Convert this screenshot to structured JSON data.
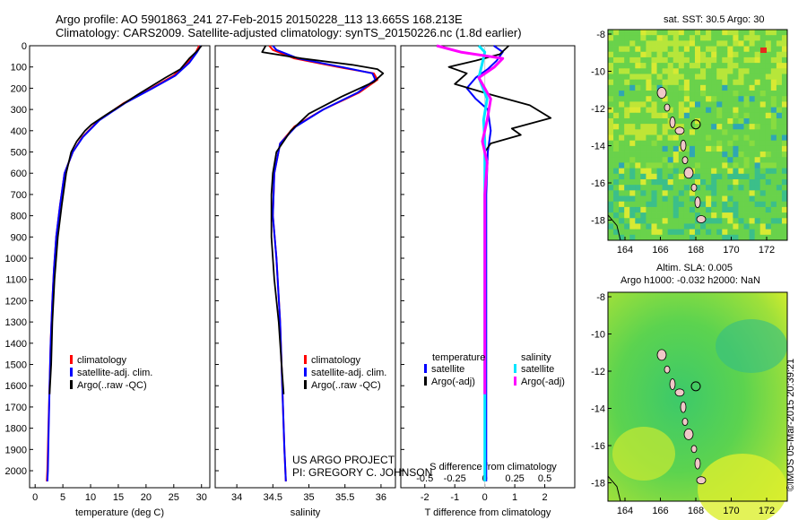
{
  "header": {
    "line1": "Argo profile: AO 5901863_241 27-Feb-2015 20150228_113 13.665S 168.213E",
    "line2": "Climatology: CARS2009. Satellite-adjusted climatology: synTS_20150226.nc (1.8d earlier)"
  },
  "maps": {
    "top_title": "sat. SST: 30.5 Argo: 30",
    "bottom_title_1": "Altim. SLA: 0.005",
    "bottom_title_2": "Argo h1000: -0.032 h2000: NaN",
    "xticks": [
      "164",
      "166",
      "168",
      "170",
      "172"
    ],
    "yticks": [
      "-8",
      "-10",
      "-12",
      "-14",
      "-16",
      "-18"
    ]
  },
  "project": {
    "line1": "US ARGO PROJECT",
    "line2": "PI: GREGORY C. JOHNSON"
  },
  "stamp": "©IMOS 05-Mar-2015 20:39:21",
  "colors": {
    "climatology": "#ff0000",
    "satellite": "#0000ff",
    "argo": "#000000",
    "satellite_s": "#00e5ff",
    "argo_s": "#ff00ff"
  },
  "chart_data": [
    {
      "type": "line",
      "xlabel": "temperature (deg C)",
      "ylabel": "",
      "xlim": [
        -1,
        31.5
      ],
      "ylim": [
        2080,
        0
      ],
      "xticks": [
        "0",
        "5",
        "10",
        "15",
        "20",
        "25",
        "30"
      ],
      "yticks": [
        "0",
        "100",
        "200",
        "300",
        "400",
        "500",
        "600",
        "700",
        "800",
        "900",
        "1000",
        "1100",
        "1200",
        "1300",
        "1400",
        "1500",
        "1600",
        "1700",
        "1800",
        "1900",
        "2000"
      ],
      "legend": [
        "climatology",
        "satellite-adj. clim.",
        "Argo(..raw -QC)"
      ],
      "series": [
        {
          "name": "climatology",
          "color": "red",
          "x": [
            29.6,
            29.0,
            27.5,
            25.0,
            21.0,
            16.0,
            11.5,
            8.5,
            6.8,
            5.3,
            4.5,
            3.8,
            3.4,
            3.1,
            2.8,
            2.6,
            2.4,
            2.2,
            2.1
          ],
          "y": [
            0,
            30,
            80,
            140,
            200,
            270,
            350,
            430,
            500,
            600,
            750,
            900,
            1050,
            1200,
            1400,
            1600,
            1800,
            2000,
            2050
          ]
        },
        {
          "name": "satellite-adj. clim.",
          "color": "blue",
          "x": [
            29.9,
            29.2,
            27.8,
            25.3,
            21.2,
            16.2,
            11.6,
            8.6,
            6.8,
            5.3,
            4.5,
            3.8,
            3.4,
            3.1,
            2.8,
            2.6,
            2.45,
            2.3,
            2.2
          ],
          "y": [
            0,
            30,
            80,
            140,
            200,
            270,
            350,
            430,
            500,
            600,
            750,
            900,
            1050,
            1200,
            1400,
            1600,
            1800,
            2000,
            2050
          ]
        },
        {
          "name": "Argo(..raw -QC)",
          "color": "black",
          "x": [
            30.0,
            29.2,
            27.8,
            26.2,
            23.5,
            21.0,
            18.5,
            15.5,
            12.5,
            10.2,
            9.0,
            7.5,
            6.5,
            5.6,
            4.8,
            4.1,
            3.5,
            3.1,
            2.9,
            2.6
          ],
          "y": [
            0,
            25,
            60,
            110,
            150,
            190,
            230,
            280,
            330,
            370,
            400,
            450,
            500,
            600,
            750,
            900,
            1100,
            1300,
            1500,
            1640
          ]
        }
      ]
    },
    {
      "type": "line",
      "xlabel": "salinity",
      "ylabel": "",
      "xlim": [
        33.7,
        36.2
      ],
      "ylim": [
        2080,
        0
      ],
      "xticks": [
        "34",
        "34.5",
        "35",
        "35.5",
        "36"
      ],
      "legend": [
        "climatology",
        "satellite-adj. clim.",
        "Argo(..raw -QC)"
      ],
      "series": [
        {
          "name": "climatology",
          "color": "red",
          "x": [
            34.45,
            34.5,
            34.8,
            35.4,
            35.9,
            35.95,
            35.7,
            35.2,
            34.8,
            34.6,
            34.52,
            34.5,
            34.55,
            34.6,
            34.63,
            34.66,
            34.68
          ],
          "y": [
            0,
            20,
            60,
            100,
            130,
            160,
            220,
            300,
            380,
            460,
            600,
            800,
            1000,
            1300,
            1600,
            1900,
            2050
          ]
        },
        {
          "name": "satellite-adj. clim.",
          "color": "blue",
          "x": [
            34.5,
            34.55,
            34.85,
            35.45,
            35.88,
            35.92,
            35.68,
            35.2,
            34.82,
            34.6,
            34.52,
            34.5,
            34.55,
            34.6,
            34.63,
            34.66,
            34.68
          ],
          "y": [
            0,
            20,
            60,
            100,
            130,
            160,
            220,
            300,
            380,
            460,
            600,
            800,
            1000,
            1300,
            1600,
            1900,
            2050
          ]
        },
        {
          "name": "Argo(..raw -QC)",
          "color": "black",
          "x": [
            34.4,
            34.35,
            34.9,
            35.6,
            35.95,
            36.03,
            35.9,
            35.45,
            35.0,
            34.75,
            34.55,
            34.5,
            34.48,
            34.48,
            34.52,
            34.58,
            34.62,
            34.65
          ],
          "y": [
            0,
            30,
            60,
            90,
            110,
            130,
            170,
            240,
            320,
            400,
            500,
            600,
            700,
            900,
            1100,
            1300,
            1500,
            1640
          ]
        }
      ]
    },
    {
      "type": "line",
      "xlabel_top": "S difference from climatology",
      "xlabel": "T difference from climatology",
      "xlim": [
        -2.8,
        3.0
      ],
      "ylim": [
        2080,
        0
      ],
      "xticks": [
        "-2",
        "-1",
        "0",
        "1",
        "2"
      ],
      "xticks_top": [
        "-0.5",
        "-0.25",
        "0",
        "0.25",
        "0.5"
      ],
      "legend_t_title": "temperature",
      "legend_s_title": "salinity",
      "legend": [
        "satellite",
        "Argo(-adj)",
        "satellite",
        "Argo(-adj)"
      ],
      "series": [
        {
          "name": "T satellite",
          "color": "blue",
          "x": [
            0.3,
            0.6,
            0.4,
            0.1,
            -0.3,
            -0.6,
            -0.3,
            0.1,
            0.2,
            0.1,
            0.05,
            0.05,
            0.05,
            0.05,
            0.05
          ],
          "y": [
            0,
            30,
            70,
            110,
            150,
            200,
            250,
            300,
            400,
            500,
            700,
            900,
            1200,
            1600,
            2050
          ]
        },
        {
          "name": "T Argo(-adj)",
          "color": "black",
          "x": [
            0.8,
            0.5,
            -0.3,
            -1.2,
            -0.6,
            -1.0,
            0.2,
            1.5,
            2.2,
            0.9,
            1.2,
            0.2,
            0.0,
            0.0,
            0.0
          ],
          "y": [
            0,
            40,
            70,
            100,
            130,
            180,
            230,
            280,
            340,
            390,
            420,
            460,
            500,
            700,
            1640
          ]
        },
        {
          "name": "S satellite",
          "color": "cyan",
          "x": [
            -0.05,
            0.0,
            -0.02,
            -0.05,
            0.02,
            -0.01,
            0.0,
            0.0,
            0.0,
            0.0,
            0.0
          ],
          "y": [
            0,
            30,
            80,
            150,
            250,
            350,
            450,
            600,
            800,
            1200,
            2050
          ]
        },
        {
          "name": "S Argo(-adj)",
          "color": "magenta",
          "x": [
            -0.4,
            -0.2,
            0.15,
            0.08,
            -0.05,
            0.05,
            0.02,
            -0.02,
            0.02,
            0.0,
            0.0,
            0.0
          ],
          "y": [
            0,
            30,
            60,
            100,
            150,
            250,
            350,
            450,
            550,
            700,
            1000,
            1640
          ]
        }
      ]
    }
  ]
}
